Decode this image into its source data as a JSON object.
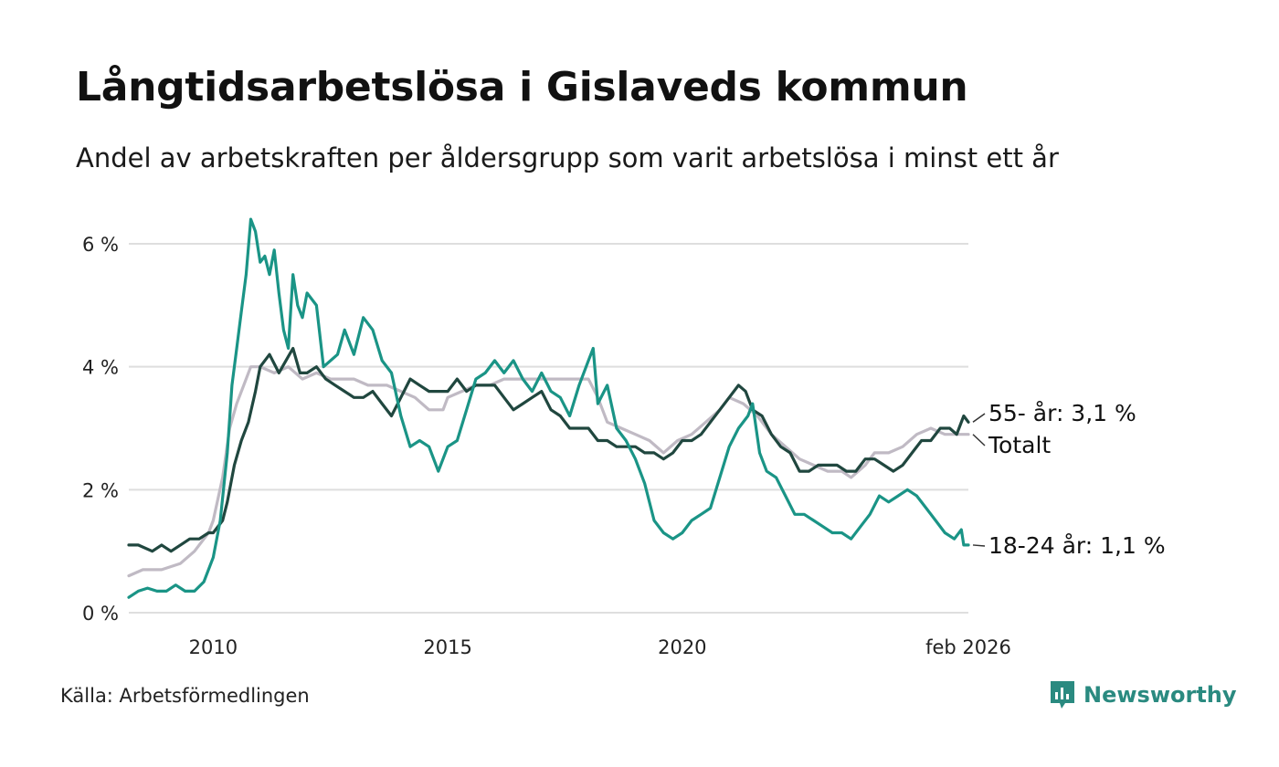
{
  "chart_data": {
    "type": "line",
    "title": "Långtidsarbetslösa i Gislaveds kommun",
    "subtitle": "Andel av arbetskraften per åldersgrupp som varit arbetslösa i minst ett år",
    "xlabel": "",
    "ylabel": "",
    "xlim": [
      2008.2,
      2026.1
    ],
    "ylim": [
      0,
      6.5
    ],
    "y_ticks": [
      {
        "value": 0,
        "label": "0 %"
      },
      {
        "value": 2,
        "label": "2 %"
      },
      {
        "value": 4,
        "label": "4 %"
      },
      {
        "value": 6,
        "label": "6 %"
      }
    ],
    "x_ticks": [
      {
        "value": 2010,
        "label": "2010"
      },
      {
        "value": 2015,
        "label": "2015"
      },
      {
        "value": 2020,
        "label": "2020"
      },
      {
        "value": 2026.1,
        "label": "feb 2026"
      }
    ],
    "grid": true,
    "series": [
      {
        "name": "Totalt",
        "end_label": "Totalt",
        "color": "#c0bac4",
        "points": [
          [
            2008.2,
            0.6
          ],
          [
            2008.5,
            0.7
          ],
          [
            2008.9,
            0.7
          ],
          [
            2009.3,
            0.8
          ],
          [
            2009.6,
            1.0
          ],
          [
            2009.9,
            1.3
          ],
          [
            2010.0,
            1.5
          ],
          [
            2010.2,
            2.2
          ],
          [
            2010.35,
            3.0
          ],
          [
            2010.5,
            3.4
          ],
          [
            2010.65,
            3.7
          ],
          [
            2010.8,
            4.0
          ],
          [
            2011.0,
            4.0
          ],
          [
            2011.3,
            3.9
          ],
          [
            2011.6,
            4.0
          ],
          [
            2011.9,
            3.8
          ],
          [
            2012.2,
            3.9
          ],
          [
            2012.5,
            3.8
          ],
          [
            2012.8,
            3.8
          ],
          [
            2013.0,
            3.8
          ],
          [
            2013.3,
            3.7
          ],
          [
            2013.7,
            3.7
          ],
          [
            2014.0,
            3.6
          ],
          [
            2014.3,
            3.5
          ],
          [
            2014.6,
            3.3
          ],
          [
            2014.9,
            3.3
          ],
          [
            2015.0,
            3.5
          ],
          [
            2015.3,
            3.6
          ],
          [
            2015.6,
            3.7
          ],
          [
            2015.9,
            3.7
          ],
          [
            2016.2,
            3.8
          ],
          [
            2016.5,
            3.8
          ],
          [
            2016.9,
            3.8
          ],
          [
            2017.3,
            3.8
          ],
          [
            2017.7,
            3.8
          ],
          [
            2018.0,
            3.8
          ],
          [
            2018.2,
            3.5
          ],
          [
            2018.4,
            3.1
          ],
          [
            2018.7,
            3.0
          ],
          [
            2019.0,
            2.9
          ],
          [
            2019.3,
            2.8
          ],
          [
            2019.6,
            2.6
          ],
          [
            2019.9,
            2.8
          ],
          [
            2020.2,
            2.9
          ],
          [
            2020.5,
            3.1
          ],
          [
            2020.8,
            3.3
          ],
          [
            2021.0,
            3.5
          ],
          [
            2021.3,
            3.4
          ],
          [
            2021.6,
            3.2
          ],
          [
            2021.9,
            2.9
          ],
          [
            2022.2,
            2.7
          ],
          [
            2022.5,
            2.5
          ],
          [
            2022.8,
            2.4
          ],
          [
            2023.1,
            2.3
          ],
          [
            2023.4,
            2.3
          ],
          [
            2023.6,
            2.2
          ],
          [
            2023.9,
            2.4
          ],
          [
            2024.1,
            2.6
          ],
          [
            2024.4,
            2.6
          ],
          [
            2024.7,
            2.7
          ],
          [
            2025.0,
            2.9
          ],
          [
            2025.3,
            3.0
          ],
          [
            2025.6,
            2.9
          ],
          [
            2025.9,
            2.9
          ],
          [
            2026.1,
            2.9
          ]
        ]
      },
      {
        "name": "55- år",
        "end_label": "55- år: 3,1 %",
        "last_value": 3.1,
        "color": "#20473f",
        "points": [
          [
            2008.2,
            1.1
          ],
          [
            2008.4,
            1.1
          ],
          [
            2008.7,
            1.0
          ],
          [
            2008.9,
            1.1
          ],
          [
            2009.1,
            1.0
          ],
          [
            2009.3,
            1.1
          ],
          [
            2009.5,
            1.2
          ],
          [
            2009.7,
            1.2
          ],
          [
            2009.9,
            1.3
          ],
          [
            2010.0,
            1.3
          ],
          [
            2010.2,
            1.5
          ],
          [
            2010.3,
            1.8
          ],
          [
            2010.45,
            2.4
          ],
          [
            2010.6,
            2.8
          ],
          [
            2010.75,
            3.1
          ],
          [
            2010.9,
            3.6
          ],
          [
            2011.0,
            4.0
          ],
          [
            2011.2,
            4.2
          ],
          [
            2011.4,
            3.9
          ],
          [
            2011.55,
            4.1
          ],
          [
            2011.7,
            4.3
          ],
          [
            2011.85,
            3.9
          ],
          [
            2012.0,
            3.9
          ],
          [
            2012.2,
            4.0
          ],
          [
            2012.4,
            3.8
          ],
          [
            2012.6,
            3.7
          ],
          [
            2012.8,
            3.6
          ],
          [
            2013.0,
            3.5
          ],
          [
            2013.2,
            3.5
          ],
          [
            2013.4,
            3.6
          ],
          [
            2013.6,
            3.4
          ],
          [
            2013.8,
            3.2
          ],
          [
            2014.0,
            3.5
          ],
          [
            2014.2,
            3.8
          ],
          [
            2014.4,
            3.7
          ],
          [
            2014.6,
            3.6
          ],
          [
            2014.8,
            3.6
          ],
          [
            2015.0,
            3.6
          ],
          [
            2015.2,
            3.8
          ],
          [
            2015.4,
            3.6
          ],
          [
            2015.6,
            3.7
          ],
          [
            2015.8,
            3.7
          ],
          [
            2016.0,
            3.7
          ],
          [
            2016.2,
            3.5
          ],
          [
            2016.4,
            3.3
          ],
          [
            2016.6,
            3.4
          ],
          [
            2016.8,
            3.5
          ],
          [
            2017.0,
            3.6
          ],
          [
            2017.2,
            3.3
          ],
          [
            2017.4,
            3.2
          ],
          [
            2017.6,
            3.0
          ],
          [
            2017.8,
            3.0
          ],
          [
            2018.0,
            3.0
          ],
          [
            2018.2,
            2.8
          ],
          [
            2018.4,
            2.8
          ],
          [
            2018.6,
            2.7
          ],
          [
            2018.8,
            2.7
          ],
          [
            2019.0,
            2.7
          ],
          [
            2019.2,
            2.6
          ],
          [
            2019.4,
            2.6
          ],
          [
            2019.6,
            2.5
          ],
          [
            2019.8,
            2.6
          ],
          [
            2020.0,
            2.8
          ],
          [
            2020.2,
            2.8
          ],
          [
            2020.4,
            2.9
          ],
          [
            2020.6,
            3.1
          ],
          [
            2020.8,
            3.3
          ],
          [
            2021.0,
            3.5
          ],
          [
            2021.2,
            3.7
          ],
          [
            2021.35,
            3.6
          ],
          [
            2021.5,
            3.3
          ],
          [
            2021.7,
            3.2
          ],
          [
            2021.9,
            2.9
          ],
          [
            2022.1,
            2.7
          ],
          [
            2022.3,
            2.6
          ],
          [
            2022.5,
            2.3
          ],
          [
            2022.7,
            2.3
          ],
          [
            2022.9,
            2.4
          ],
          [
            2023.1,
            2.4
          ],
          [
            2023.3,
            2.4
          ],
          [
            2023.5,
            2.3
          ],
          [
            2023.7,
            2.3
          ],
          [
            2023.9,
            2.5
          ],
          [
            2024.1,
            2.5
          ],
          [
            2024.3,
            2.4
          ],
          [
            2024.5,
            2.3
          ],
          [
            2024.7,
            2.4
          ],
          [
            2024.9,
            2.6
          ],
          [
            2025.1,
            2.8
          ],
          [
            2025.3,
            2.8
          ],
          [
            2025.5,
            3.0
          ],
          [
            2025.7,
            3.0
          ],
          [
            2025.85,
            2.9
          ],
          [
            2026.0,
            3.2
          ],
          [
            2026.1,
            3.1
          ]
        ]
      },
      {
        "name": "18-24 år",
        "end_label": "18-24 år: 1,1 %",
        "last_value": 1.1,
        "color": "#1a9486",
        "points": [
          [
            2008.2,
            0.25
          ],
          [
            2008.4,
            0.35
          ],
          [
            2008.6,
            0.4
          ],
          [
            2008.8,
            0.35
          ],
          [
            2009.0,
            0.35
          ],
          [
            2009.2,
            0.45
          ],
          [
            2009.4,
            0.35
          ],
          [
            2009.6,
            0.35
          ],
          [
            2009.8,
            0.5
          ],
          [
            2010.0,
            0.9
          ],
          [
            2010.15,
            1.5
          ],
          [
            2010.3,
            2.6
          ],
          [
            2010.4,
            3.7
          ],
          [
            2010.5,
            4.3
          ],
          [
            2010.6,
            4.9
          ],
          [
            2010.7,
            5.5
          ],
          [
            2010.8,
            6.4
          ],
          [
            2010.9,
            6.2
          ],
          [
            2011.0,
            5.7
          ],
          [
            2011.1,
            5.8
          ],
          [
            2011.2,
            5.5
          ],
          [
            2011.3,
            5.9
          ],
          [
            2011.4,
            5.2
          ],
          [
            2011.5,
            4.6
          ],
          [
            2011.6,
            4.3
          ],
          [
            2011.7,
            5.5
          ],
          [
            2011.8,
            5.0
          ],
          [
            2011.9,
            4.8
          ],
          [
            2012.0,
            5.2
          ],
          [
            2012.2,
            5.0
          ],
          [
            2012.35,
            4.0
          ],
          [
            2012.5,
            4.1
          ],
          [
            2012.65,
            4.2
          ],
          [
            2012.8,
            4.6
          ],
          [
            2013.0,
            4.2
          ],
          [
            2013.2,
            4.8
          ],
          [
            2013.4,
            4.6
          ],
          [
            2013.6,
            4.1
          ],
          [
            2013.8,
            3.9
          ],
          [
            2014.0,
            3.2
          ],
          [
            2014.2,
            2.7
          ],
          [
            2014.4,
            2.8
          ],
          [
            2014.6,
            2.7
          ],
          [
            2014.8,
            2.3
          ],
          [
            2015.0,
            2.7
          ],
          [
            2015.2,
            2.8
          ],
          [
            2015.4,
            3.3
          ],
          [
            2015.6,
            3.8
          ],
          [
            2015.8,
            3.9
          ],
          [
            2016.0,
            4.1
          ],
          [
            2016.2,
            3.9
          ],
          [
            2016.4,
            4.1
          ],
          [
            2016.6,
            3.8
          ],
          [
            2016.8,
            3.6
          ],
          [
            2017.0,
            3.9
          ],
          [
            2017.2,
            3.6
          ],
          [
            2017.4,
            3.5
          ],
          [
            2017.6,
            3.2
          ],
          [
            2017.8,
            3.7
          ],
          [
            2018.0,
            4.1
          ],
          [
            2018.1,
            4.3
          ],
          [
            2018.2,
            3.4
          ],
          [
            2018.4,
            3.7
          ],
          [
            2018.6,
            3.0
          ],
          [
            2018.8,
            2.8
          ],
          [
            2019.0,
            2.5
          ],
          [
            2019.2,
            2.1
          ],
          [
            2019.4,
            1.5
          ],
          [
            2019.6,
            1.3
          ],
          [
            2019.8,
            1.2
          ],
          [
            2020.0,
            1.3
          ],
          [
            2020.2,
            1.5
          ],
          [
            2020.4,
            1.6
          ],
          [
            2020.6,
            1.7
          ],
          [
            2020.8,
            2.2
          ],
          [
            2021.0,
            2.7
          ],
          [
            2021.2,
            3.0
          ],
          [
            2021.4,
            3.2
          ],
          [
            2021.5,
            3.4
          ],
          [
            2021.65,
            2.6
          ],
          [
            2021.8,
            2.3
          ],
          [
            2022.0,
            2.2
          ],
          [
            2022.2,
            1.9
          ],
          [
            2022.4,
            1.6
          ],
          [
            2022.6,
            1.6
          ],
          [
            2022.8,
            1.5
          ],
          [
            2023.0,
            1.4
          ],
          [
            2023.2,
            1.3
          ],
          [
            2023.4,
            1.3
          ],
          [
            2023.6,
            1.2
          ],
          [
            2023.8,
            1.4
          ],
          [
            2024.0,
            1.6
          ],
          [
            2024.2,
            1.9
          ],
          [
            2024.4,
            1.8
          ],
          [
            2024.6,
            1.9
          ],
          [
            2024.8,
            2.0
          ],
          [
            2025.0,
            1.9
          ],
          [
            2025.2,
            1.7
          ],
          [
            2025.4,
            1.5
          ],
          [
            2025.6,
            1.3
          ],
          [
            2025.8,
            1.2
          ],
          [
            2025.95,
            1.35
          ],
          [
            2026.0,
            1.1
          ],
          [
            2026.1,
            1.1
          ]
        ]
      }
    ]
  },
  "footer": {
    "source": "Källa: Arbetsförmedlingen",
    "brand": "Newsworthy",
    "logo_icon": "newsworthy-logo-icon"
  }
}
